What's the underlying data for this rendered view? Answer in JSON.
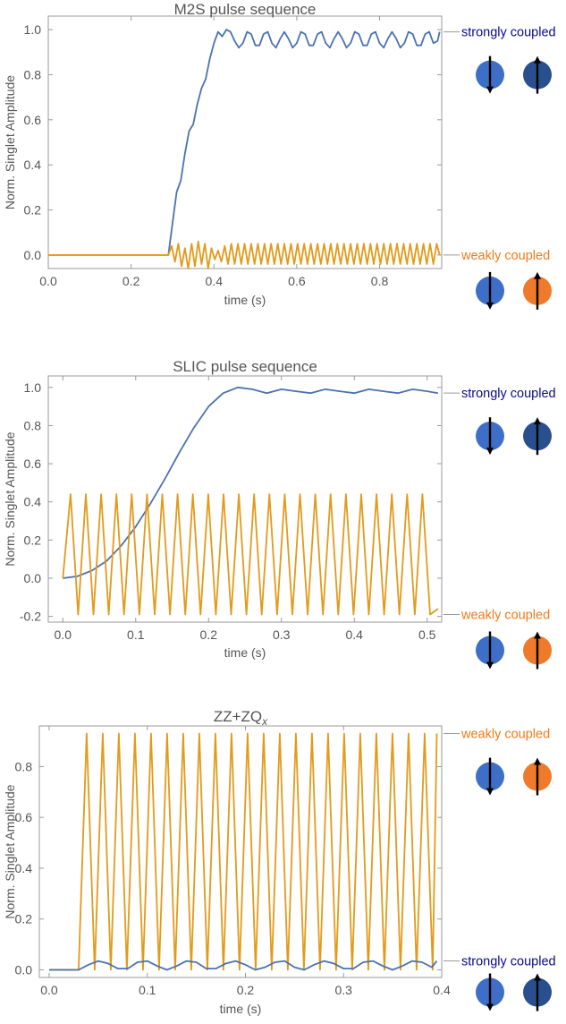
{
  "colors": {
    "strong_series": "#4a72b0",
    "weak_series": "#e29a1b",
    "strong_label": "#0a0a8a",
    "weak_label": "#f27a1a",
    "spin_light_blue": "#3d6fc8",
    "spin_dark_blue": "#294f8f",
    "spin_orange": "#ef7a2a"
  },
  "icons": {
    "strong_pair": [
      "spin-down-light-blue-icon",
      "spin-up-dark-blue-icon"
    ],
    "weak_pair": [
      "spin-down-light-blue-icon",
      "spin-up-orange-icon"
    ]
  },
  "chart_data": [
    {
      "type": "line",
      "title": "M2S pulse sequence",
      "title_sub": "",
      "xlabel": "time (s)",
      "ylabel": "Norm. Singlet Amplitude",
      "xlim": [
        0,
        0.95
      ],
      "ylim": [
        -0.06,
        1.06
      ],
      "xticks": [
        0.0,
        0.2,
        0.4,
        0.6,
        0.8
      ],
      "xtick_labels": [
        "0.0",
        "0.2",
        "0.4",
        "0.6",
        "0.8"
      ],
      "yticks": [
        0.0,
        0.2,
        0.4,
        0.6,
        0.8,
        1.0
      ],
      "ytick_labels": [
        "0.0",
        "0.2",
        "0.4",
        "0.6",
        "0.8",
        "1.0"
      ],
      "series": [
        {
          "role": "strongly coupled",
          "color_key": "strong_series",
          "x": [
            0.0,
            0.29,
            0.3,
            0.31,
            0.32,
            0.33,
            0.34,
            0.35,
            0.36,
            0.37,
            0.38,
            0.39,
            0.4,
            0.41,
            0.42,
            0.43,
            0.44,
            0.45,
            0.46,
            0.47,
            0.48,
            0.49,
            0.5,
            0.51,
            0.52,
            0.53,
            0.54,
            0.55,
            0.56,
            0.57,
            0.58,
            0.59,
            0.6,
            0.61,
            0.62,
            0.63,
            0.64,
            0.65,
            0.66,
            0.67,
            0.68,
            0.69,
            0.7,
            0.71,
            0.72,
            0.73,
            0.74,
            0.75,
            0.76,
            0.77,
            0.78,
            0.79,
            0.8,
            0.81,
            0.82,
            0.83,
            0.84,
            0.85,
            0.86,
            0.87,
            0.88,
            0.89,
            0.9,
            0.91,
            0.92,
            0.93,
            0.94,
            0.945
          ],
          "y": [
            0.0,
            0.0,
            0.14,
            0.28,
            0.33,
            0.45,
            0.55,
            0.58,
            0.67,
            0.74,
            0.78,
            0.87,
            0.94,
            0.99,
            0.97,
            1.0,
            0.99,
            0.95,
            0.92,
            0.94,
            0.99,
            0.98,
            0.93,
            0.93,
            0.98,
            0.99,
            0.94,
            0.92,
            0.96,
            0.99,
            0.96,
            0.92,
            0.94,
            0.99,
            0.98,
            0.93,
            0.93,
            0.98,
            0.99,
            0.94,
            0.92,
            0.96,
            0.99,
            0.96,
            0.92,
            0.94,
            0.99,
            0.98,
            0.93,
            0.93,
            0.98,
            0.99,
            0.94,
            0.92,
            0.96,
            0.99,
            0.96,
            0.92,
            0.94,
            0.99,
            0.98,
            0.93,
            0.93,
            0.98,
            0.99,
            0.94,
            0.95,
            0.99
          ]
        },
        {
          "role": "weakly coupled",
          "color_key": "weak_series",
          "x": [
            0.0,
            0.29,
            0.298,
            0.306,
            0.314,
            0.322,
            0.33,
            0.338,
            0.346,
            0.354,
            0.362,
            0.37,
            0.378,
            0.386,
            0.394,
            0.402,
            0.41,
            0.418,
            0.426,
            0.434,
            0.442,
            0.45,
            0.458,
            0.466,
            0.474,
            0.482,
            0.49,
            0.498,
            0.506,
            0.514,
            0.522,
            0.53,
            0.538,
            0.546,
            0.554,
            0.562,
            0.57,
            0.578,
            0.586,
            0.594,
            0.602,
            0.61,
            0.618,
            0.626,
            0.634,
            0.642,
            0.65,
            0.658,
            0.666,
            0.674,
            0.682,
            0.69,
            0.698,
            0.706,
            0.714,
            0.722,
            0.73,
            0.738,
            0.746,
            0.754,
            0.762,
            0.77,
            0.778,
            0.786,
            0.794,
            0.802,
            0.81,
            0.818,
            0.826,
            0.834,
            0.842,
            0.85,
            0.858,
            0.866,
            0.874,
            0.882,
            0.89,
            0.898,
            0.906,
            0.914,
            0.922,
            0.93,
            0.938,
            0.945
          ],
          "y": [
            0.0,
            0.0,
            0.04,
            -0.03,
            0.05,
            -0.05,
            0.03,
            -0.06,
            0.05,
            -0.05,
            0.06,
            -0.04,
            0.05,
            -0.06,
            0.03,
            -0.02,
            0.02,
            -0.03,
            0.04,
            -0.04,
            0.05,
            -0.04,
            0.05,
            -0.04,
            0.05,
            -0.04,
            0.05,
            -0.04,
            0.05,
            -0.04,
            0.05,
            -0.04,
            0.05,
            -0.04,
            0.05,
            -0.04,
            0.05,
            -0.04,
            0.05,
            -0.04,
            0.05,
            -0.04,
            0.05,
            -0.04,
            0.05,
            -0.04,
            0.05,
            -0.04,
            0.05,
            -0.04,
            0.05,
            -0.04,
            0.05,
            -0.04,
            0.05,
            -0.04,
            0.05,
            -0.04,
            0.05,
            -0.04,
            0.05,
            -0.04,
            0.05,
            -0.04,
            0.05,
            -0.04,
            0.05,
            -0.04,
            0.05,
            -0.04,
            0.05,
            -0.04,
            0.05,
            -0.04,
            0.05,
            -0.04,
            0.05,
            -0.04,
            0.05,
            -0.04,
            0.05,
            -0.04,
            0.05,
            0.0
          ]
        }
      ],
      "annotations": [
        {
          "text": "strongly coupled",
          "y": 0.99,
          "color_key": "strong_label",
          "pair": "strong_pair"
        },
        {
          "text": "weakly coupled",
          "y": 0.0,
          "color_key": "weak_label",
          "pair": "weak_pair"
        }
      ]
    },
    {
      "type": "line",
      "title": "SLIC pulse sequence",
      "title_sub": "",
      "xlabel": "time (s)",
      "ylabel": "Norm. Singlet Amplitude",
      "xlim": [
        -0.02,
        0.52
      ],
      "ylim": [
        -0.23,
        1.06
      ],
      "xticks": [
        0.0,
        0.1,
        0.2,
        0.3,
        0.4,
        0.5
      ],
      "xtick_labels": [
        "0.0",
        "0.1",
        "0.2",
        "0.3",
        "0.4",
        "0.5"
      ],
      "yticks": [
        -0.2,
        0.0,
        0.2,
        0.4,
        0.6,
        0.8,
        1.0
      ],
      "ytick_labels": [
        "-0.2",
        "0.0",
        "0.2",
        "0.4",
        "0.6",
        "0.8",
        "1.0"
      ],
      "series": [
        {
          "role": "strongly coupled",
          "color_key": "strong_series",
          "x": [
            0.0,
            0.02,
            0.04,
            0.06,
            0.08,
            0.1,
            0.12,
            0.14,
            0.16,
            0.18,
            0.2,
            0.22,
            0.24,
            0.26,
            0.28,
            0.3,
            0.32,
            0.34,
            0.36,
            0.38,
            0.4,
            0.42,
            0.44,
            0.46,
            0.48,
            0.5,
            0.515
          ],
          "y": [
            0.0,
            0.01,
            0.04,
            0.09,
            0.17,
            0.27,
            0.39,
            0.52,
            0.66,
            0.79,
            0.9,
            0.97,
            1.0,
            0.99,
            0.97,
            0.99,
            0.98,
            0.97,
            0.99,
            0.98,
            0.97,
            0.99,
            0.98,
            0.97,
            0.99,
            0.98,
            0.97
          ]
        },
        {
          "role": "weakly coupled",
          "color_key": "weak_series",
          "x": [
            0.0,
            0.0105,
            0.021,
            0.0315,
            0.042,
            0.0525,
            0.063,
            0.0735,
            0.084,
            0.0945,
            0.105,
            0.1155,
            0.126,
            0.1365,
            0.147,
            0.1575,
            0.168,
            0.1785,
            0.189,
            0.1995,
            0.21,
            0.2205,
            0.231,
            0.2415,
            0.252,
            0.2625,
            0.273,
            0.2835,
            0.294,
            0.3045,
            0.315,
            0.3255,
            0.336,
            0.3465,
            0.357,
            0.3675,
            0.378,
            0.3885,
            0.399,
            0.4095,
            0.42,
            0.4305,
            0.441,
            0.4515,
            0.462,
            0.4725,
            0.483,
            0.4935,
            0.504,
            0.515
          ],
          "y": [
            0.0,
            0.44,
            -0.19,
            0.44,
            -0.19,
            0.44,
            -0.19,
            0.44,
            -0.19,
            0.44,
            -0.19,
            0.44,
            -0.19,
            0.44,
            -0.19,
            0.44,
            -0.19,
            0.44,
            -0.19,
            0.44,
            -0.19,
            0.44,
            -0.19,
            0.44,
            -0.19,
            0.44,
            -0.19,
            0.44,
            -0.19,
            0.44,
            -0.19,
            0.44,
            -0.19,
            0.44,
            -0.19,
            0.44,
            -0.19,
            0.44,
            -0.19,
            0.44,
            -0.19,
            0.44,
            -0.19,
            0.44,
            -0.19,
            0.44,
            -0.19,
            0.44,
            -0.19,
            -0.16
          ]
        }
      ],
      "annotations": [
        {
          "text": "strongly coupled",
          "y": 0.97,
          "color_key": "strong_label",
          "pair": "strong_pair"
        },
        {
          "text": "weakly coupled",
          "y": -0.19,
          "color_key": "weak_label",
          "pair": "weak_pair"
        }
      ]
    },
    {
      "type": "line",
      "title": "ZZ+ZQ",
      "title_sub": "x",
      "xlabel": "time (s)",
      "ylabel": "Norm. Singlet Amplitude",
      "xlim": [
        -0.01,
        0.4
      ],
      "ylim": [
        -0.03,
        0.96
      ],
      "xticks": [
        0.0,
        0.1,
        0.2,
        0.3,
        0.4
      ],
      "xtick_labels": [
        "0.0",
        "0.1",
        "0.2",
        "0.3",
        "0.4"
      ],
      "yticks": [
        0.0,
        0.2,
        0.4,
        0.6,
        0.8
      ],
      "ytick_labels": [
        "0.0",
        "0.2",
        "0.4",
        "0.6",
        "0.8"
      ],
      "series": [
        {
          "role": "weakly coupled",
          "color_key": "weak_series",
          "x": [
            0.0,
            0.03,
            0.0382,
            0.0464,
            0.0546,
            0.0628,
            0.071,
            0.0792,
            0.0874,
            0.0956,
            0.1038,
            0.112,
            0.1202,
            0.1284,
            0.1366,
            0.1448,
            0.153,
            0.1612,
            0.1694,
            0.1776,
            0.1858,
            0.194,
            0.2022,
            0.2104,
            0.2186,
            0.2268,
            0.235,
            0.2432,
            0.2514,
            0.2596,
            0.2678,
            0.276,
            0.2842,
            0.2924,
            0.3006,
            0.3088,
            0.317,
            0.3252,
            0.3334,
            0.3416,
            0.3498,
            0.358,
            0.3662,
            0.3744,
            0.3826,
            0.3908,
            0.395
          ],
          "y": [
            0.0,
            0.0,
            0.93,
            0.0,
            0.93,
            0.0,
            0.93,
            0.0,
            0.93,
            0.0,
            0.93,
            0.0,
            0.93,
            0.0,
            0.93,
            0.0,
            0.93,
            0.0,
            0.93,
            0.0,
            0.93,
            0.0,
            0.93,
            0.0,
            0.93,
            0.0,
            0.93,
            0.0,
            0.93,
            0.0,
            0.93,
            0.0,
            0.93,
            0.0,
            0.93,
            0.0,
            0.93,
            0.0,
            0.93,
            0.0,
            0.93,
            0.0,
            0.93,
            0.0,
            0.93,
            0.0,
            0.93
          ]
        },
        {
          "role": "strongly coupled",
          "color_key": "strong_series",
          "x": [
            0.0,
            0.03,
            0.04,
            0.05,
            0.06,
            0.07,
            0.08,
            0.09,
            0.1,
            0.11,
            0.12,
            0.13,
            0.14,
            0.15,
            0.16,
            0.17,
            0.18,
            0.19,
            0.2,
            0.21,
            0.22,
            0.23,
            0.24,
            0.25,
            0.26,
            0.27,
            0.28,
            0.29,
            0.3,
            0.31,
            0.32,
            0.33,
            0.34,
            0.35,
            0.36,
            0.37,
            0.38,
            0.39,
            0.395
          ],
          "y": [
            0.0,
            0.0,
            0.02,
            0.035,
            0.025,
            0.005,
            0.005,
            0.03,
            0.035,
            0.015,
            0.0,
            0.015,
            0.035,
            0.03,
            0.005,
            0.005,
            0.025,
            0.035,
            0.02,
            0.0,
            0.01,
            0.03,
            0.035,
            0.01,
            0.0,
            0.02,
            0.035,
            0.025,
            0.005,
            0.005,
            0.03,
            0.035,
            0.015,
            0.0,
            0.015,
            0.035,
            0.03,
            0.01,
            0.035
          ]
        }
      ],
      "annotations": [
        {
          "text": "weakly coupled",
          "y": 0.93,
          "color_key": "weak_label",
          "pair": "weak_pair"
        },
        {
          "text": "strongly coupled",
          "y": 0.035,
          "color_key": "strong_label",
          "pair": "strong_pair"
        }
      ]
    }
  ]
}
